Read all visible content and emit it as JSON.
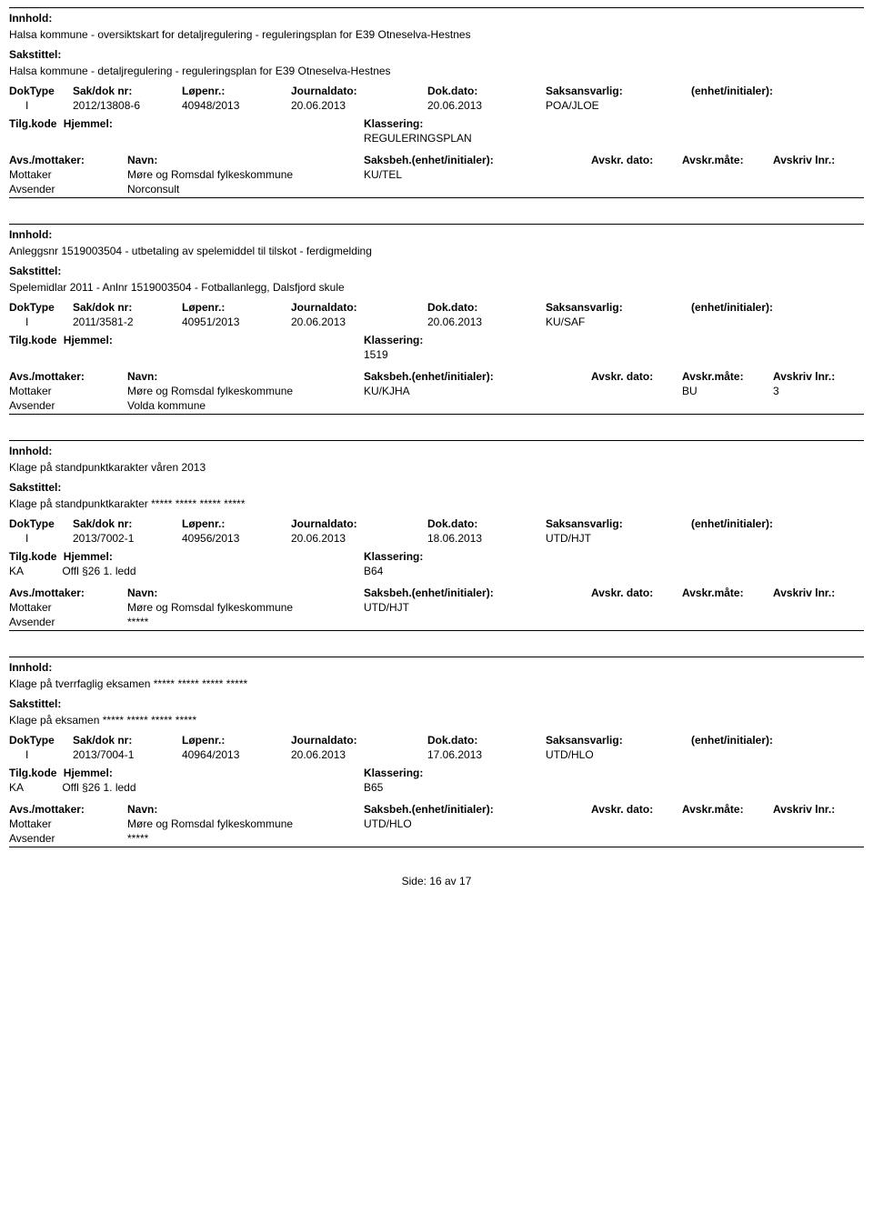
{
  "labels": {
    "innhold": "Innhold:",
    "sakstittel": "Sakstittel:",
    "doktype": "DokType",
    "saknr": "Sak/dok nr:",
    "lopenr": "Løpenr.:",
    "jdato": "Journaldato:",
    "ddato": "Dok.dato:",
    "saksansvarlig": "Saksansvarlig:",
    "enhet": "(enhet/initialer):",
    "tilgkode": "Tilg.kode",
    "hjemmel": "Hjemmel:",
    "klassering": "Klassering:",
    "avsmottaker": "Avs./mottaker:",
    "navn": "Navn:",
    "saksbeh": "Saksbeh.(enhet/initialer):",
    "avskrdato": "Avskr. dato:",
    "avskrmate": "Avskr.måte:",
    "avskrivlnr": "Avskriv lnr.:",
    "mottaker": "Mottaker",
    "avsender": "Avsender",
    "side": "Side:",
    "av": "av"
  },
  "footer": {
    "page": "16",
    "total": "17"
  },
  "entries": [
    {
      "innhold": "Halsa kommune - oversiktskart for detaljregulering - reguleringsplan for E39 Otneselva-Hestnes",
      "sakstittel": "Halsa kommune - detaljregulering - reguleringsplan for E39 Otneselva-Hestnes",
      "doktype": "I",
      "saknr": "2012/13808-6",
      "lopenr": "40948/2013",
      "jdato": "20.06.2013",
      "ddato": "20.06.2013",
      "saksansvarlig": "POA/JLOE",
      "tilgkode": "",
      "hjemmel": "",
      "klassering": "REGULERINGSPLAN",
      "parties": [
        {
          "role": "Mottaker",
          "name": "Møre og Romsdal fylkeskommune",
          "saksbeh": "KU/TEL",
          "avskrdato": "",
          "avskrmate": "",
          "avskrivlnr": ""
        },
        {
          "role": "Avsender",
          "name": "Norconsult",
          "saksbeh": "",
          "avskrdato": "",
          "avskrmate": "",
          "avskrivlnr": ""
        }
      ]
    },
    {
      "innhold": "Anleggsnr 1519003504 - utbetaling av spelemiddel til tilskot - ferdigmelding",
      "sakstittel": "Spelemidlar 2011 - Anlnr 1519003504 - Fotballanlegg, Dalsfjord skule",
      "doktype": "I",
      "saknr": "2011/3581-2",
      "lopenr": "40951/2013",
      "jdato": "20.06.2013",
      "ddato": "20.06.2013",
      "saksansvarlig": "KU/SAF",
      "tilgkode": "",
      "hjemmel": "",
      "klassering": "1519",
      "parties": [
        {
          "role": "Mottaker",
          "name": "Møre og Romsdal fylkeskommune",
          "saksbeh": "KU/KJHA",
          "avskrdato": "",
          "avskrmate": "BU",
          "avskrivlnr": "3"
        },
        {
          "role": "Avsender",
          "name": "Volda kommune",
          "saksbeh": "",
          "avskrdato": "",
          "avskrmate": "",
          "avskrivlnr": ""
        }
      ]
    },
    {
      "innhold": "Klage på standpunktkarakter våren 2013",
      "sakstittel": "Klage på standpunktkarakter ***** ***** ***** *****",
      "doktype": "I",
      "saknr": "2013/7002-1",
      "lopenr": "40956/2013",
      "jdato": "20.06.2013",
      "ddato": "18.06.2013",
      "saksansvarlig": "UTD/HJT",
      "tilgkode": "KA",
      "hjemmel": "Offl §26 1. ledd",
      "klassering": "B64",
      "parties": [
        {
          "role": "Mottaker",
          "name": "Møre og Romsdal fylkeskommune",
          "saksbeh": "UTD/HJT",
          "avskrdato": "",
          "avskrmate": "",
          "avskrivlnr": ""
        },
        {
          "role": "Avsender",
          "name": "*****",
          "saksbeh": "",
          "avskrdato": "",
          "avskrmate": "",
          "avskrivlnr": ""
        }
      ]
    },
    {
      "innhold": "Klage på tverrfaglig eksamen ***** ***** ***** *****",
      "sakstittel": "Klage på eksamen ***** ***** ***** *****",
      "doktype": "I",
      "saknr": "2013/7004-1",
      "lopenr": "40964/2013",
      "jdato": "20.06.2013",
      "ddato": "17.06.2013",
      "saksansvarlig": "UTD/HLO",
      "tilgkode": "KA",
      "hjemmel": "Offl §26 1. ledd",
      "klassering": "B65",
      "parties": [
        {
          "role": "Mottaker",
          "name": "Møre og Romsdal fylkeskommune",
          "saksbeh": "UTD/HLO",
          "avskrdato": "",
          "avskrmate": "",
          "avskrivlnr": ""
        },
        {
          "role": "Avsender",
          "name": "*****",
          "saksbeh": "",
          "avskrdato": "",
          "avskrmate": "",
          "avskrivlnr": ""
        }
      ]
    }
  ]
}
